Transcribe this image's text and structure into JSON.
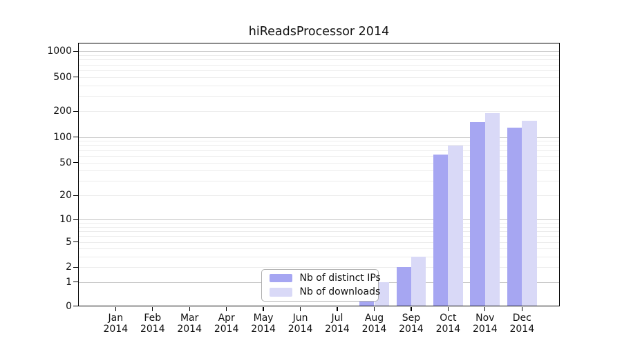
{
  "chart_data": {
    "type": "bar",
    "title": "hiReadsProcessor 2014",
    "categories": [
      "Jan 2014",
      "Feb 2014",
      "Mar 2014",
      "Apr 2014",
      "May 2014",
      "Jun 2014",
      "Jul 2014",
      "Aug 2014",
      "Sep 2014",
      "Oct 2014",
      "Nov 2014",
      "Dec 2014"
    ],
    "series": [
      {
        "name": "Nb of distinct IPs",
        "color": "#a6a6f2",
        "values": [
          0,
          0,
          0,
          0,
          0,
          0,
          0,
          1,
          2,
          62,
          148,
          128
        ]
      },
      {
        "name": "Nb of downloads",
        "color": "#d9d9f7",
        "values": [
          0,
          0,
          0,
          0,
          0,
          0,
          0,
          1,
          3,
          79,
          190,
          155
        ]
      }
    ],
    "y_ticks": [
      0,
      1,
      2,
      5,
      10,
      20,
      50,
      100,
      200,
      500,
      1000
    ],
    "y_scale": "log-like (log10 of 1+x)",
    "ylim": [
      0,
      1000
    ],
    "xlabel": "",
    "ylabel": "",
    "grid": true,
    "legend_position": "lower center"
  },
  "colors": {
    "background": "#ffffff",
    "axis": "#000000",
    "grid_major": "#c8c8c8",
    "grid_minor": "#ececec",
    "legend_border": "#b0b0b0"
  }
}
